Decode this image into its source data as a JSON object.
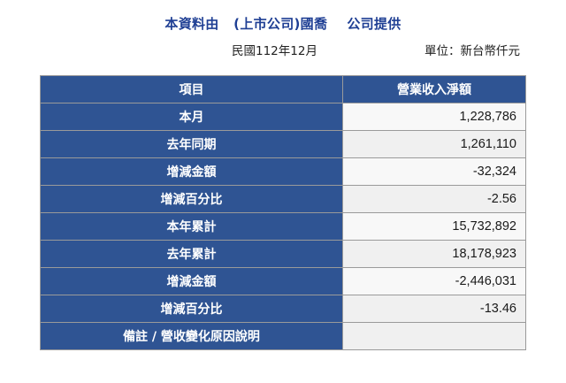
{
  "header": {
    "title": "本資料由   (上市公司)國喬    公司提供",
    "period": "民國112年12月",
    "unit": "單位：新台幣仟元"
  },
  "table": {
    "col_item": "項目",
    "col_value": "營業收入淨額",
    "rows": [
      {
        "label": "本月",
        "value": "1,228,786"
      },
      {
        "label": "去年同期",
        "value": "1,261,110"
      },
      {
        "label": "增減金額",
        "value": "-32,324"
      },
      {
        "label": "增減百分比",
        "value": "-2.56"
      },
      {
        "label": "本年累計",
        "value": "15,732,892"
      },
      {
        "label": "去年累計",
        "value": "18,178,923"
      },
      {
        "label": "增減金額",
        "value": "-2,446,031"
      },
      {
        "label": "增減百分比",
        "value": "-13.46"
      },
      {
        "label": "備註 / 營收變化原因說明",
        "value": ""
      }
    ]
  }
}
